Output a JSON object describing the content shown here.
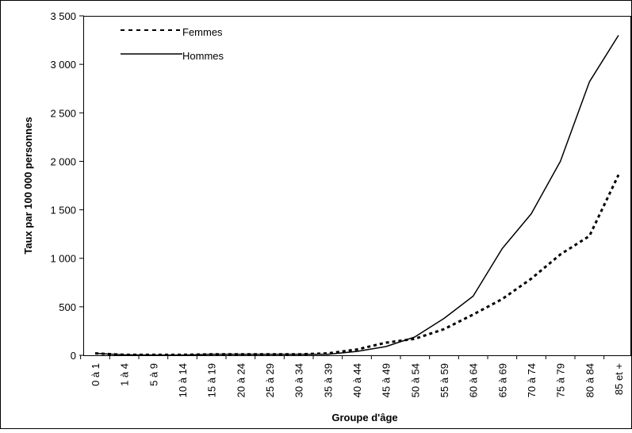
{
  "chart_data": {
    "type": "line",
    "title": "",
    "xlabel": "Groupe d'âge",
    "ylabel": "Taux par 100 000 personnes",
    "ylim": [
      0,
      3500
    ],
    "yticks": [
      0,
      500,
      1000,
      1500,
      2000,
      2500,
      3000,
      3500
    ],
    "ytick_labels": [
      "0",
      "500",
      "1 000",
      "1 500",
      "2 000",
      "2 500",
      "3 000",
      "3 500"
    ],
    "categories": [
      "0 à 1",
      "1 à 4",
      "5 à 9",
      "10 à 14",
      "15 à 19",
      "20 à 24",
      "25 à 29",
      "30 à 34",
      "35 à 39",
      "40 à 44",
      "45 à 49",
      "50 à 54",
      "55 à 59",
      "60 à 64",
      "65 à 69",
      "70 à 74",
      "75 à 79",
      "80 à 84",
      "85 et +"
    ],
    "series": [
      {
        "name": "Femmes",
        "style": "dashed",
        "color": "#000000",
        "values": [
          20,
          5,
          5,
          5,
          10,
          10,
          10,
          10,
          20,
          60,
          130,
          170,
          270,
          420,
          580,
          790,
          1040,
          1230,
          1860
        ]
      },
      {
        "name": "Hommes",
        "style": "solid",
        "color": "#000000",
        "values": [
          20,
          5,
          2,
          2,
          10,
          10,
          10,
          10,
          10,
          40,
          90,
          190,
          380,
          610,
          1100,
          1460,
          2000,
          2820,
          3300
        ]
      }
    ],
    "grid": false,
    "legend_position": "top-left"
  }
}
